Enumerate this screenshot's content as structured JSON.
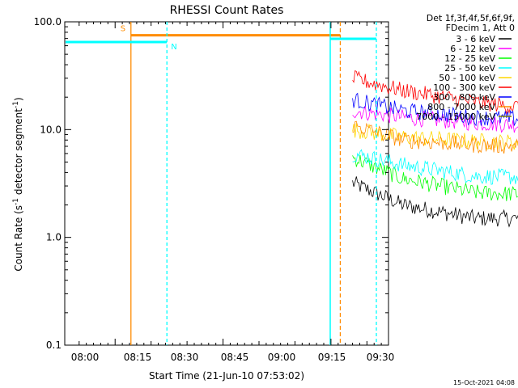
{
  "chart_data": {
    "type": "line",
    "title": "RHESSI Count Rates",
    "xlabel": "Start Time (21-Jun-10 07:53:02)",
    "ylabel": "Count Rate (s^-1 detector segment^-1)",
    "ylabel_main": "Count Rate (s",
    "ylabel_sup1": "-1",
    "ylabel_mid": " detector segment",
    "ylabel_sup2": "-1",
    "ylabel_end": ")",
    "y_scale": "log",
    "ylim": [
      0.1,
      100
    ],
    "y_ticks": [
      {
        "value": 0.1,
        "label": "0.1"
      },
      {
        "value": 1,
        "label": "1.0"
      },
      {
        "value": 10,
        "label": "10.0"
      },
      {
        "value": 100,
        "label": "100.0"
      }
    ],
    "xlim_minutes": [
      -7,
      38
    ],
    "x_ticks": [
      {
        "minute": 0,
        "label": "08:00"
      },
      {
        "minute": 15,
        "label": "08:15"
      },
      {
        "minute": 30,
        "label": "08:30"
      },
      {
        "minute": 45,
        "label": "08:45"
      },
      {
        "minute": 60,
        "label": "09:00"
      },
      {
        "minute": 75,
        "label": "09:15"
      },
      {
        "minute": 90,
        "label": "09:30"
      }
    ],
    "legend_header": [
      "Det 1f,3f,4f,5f,6f,9f,",
      "FDecim 1, Att 0"
    ],
    "legend_position": "right",
    "series": [
      {
        "name": "3 - 6 keV",
        "color": "#000000",
        "points": [
          [
            33,
            3.2
          ],
          [
            40,
            2.0
          ],
          [
            50,
            1.5
          ],
          [
            57,
            1.5
          ],
          [
            62,
            2.1
          ],
          [
            75,
            2.7
          ],
          [
            79,
            3.0
          ]
        ]
      },
      {
        "name": "6 - 12 keV",
        "color": "#ff00ff",
        "points": [
          [
            33,
            15
          ],
          [
            40,
            13
          ],
          [
            50,
            11.5
          ],
          [
            57,
            11
          ],
          [
            62,
            12
          ],
          [
            75,
            13
          ],
          [
            79,
            13.5
          ]
        ]
      },
      {
        "name": "12 - 25 keV",
        "color": "#00ff00",
        "points": [
          [
            33,
            5.5
          ],
          [
            40,
            3.5
          ],
          [
            50,
            2.6
          ],
          [
            57,
            2.5
          ],
          [
            62,
            2.8
          ],
          [
            75,
            3.5
          ],
          [
            79,
            3.7
          ]
        ]
      },
      {
        "name": "25 - 50 keV",
        "color": "#00ffff",
        "points": [
          [
            33,
            6.0
          ],
          [
            40,
            4.7
          ],
          [
            50,
            3.7
          ],
          [
            57,
            3.6
          ],
          [
            62,
            4.0
          ],
          [
            75,
            4.6
          ],
          [
            79,
            4.8
          ]
        ]
      },
      {
        "name": "50 - 100 keV",
        "color": "#ffd700",
        "points": [
          [
            33,
            10
          ],
          [
            40,
            8.5
          ],
          [
            50,
            7.8
          ],
          [
            57,
            7.6
          ],
          [
            62,
            8.0
          ],
          [
            75,
            9.0
          ],
          [
            79,
            9.5
          ]
        ]
      },
      {
        "name": "100 - 300 keV",
        "color": "#ff0000",
        "points": [
          [
            33,
            30
          ],
          [
            40,
            23
          ],
          [
            50,
            18
          ],
          [
            57,
            16
          ],
          [
            62,
            17
          ],
          [
            75,
            19.5
          ],
          [
            79,
            20
          ]
        ]
      },
      {
        "name": "300 - 800 keV",
        "color": "#0000ff",
        "points": [
          [
            33,
            19
          ],
          [
            40,
            15
          ],
          [
            50,
            13
          ],
          [
            57,
            12.5
          ],
          [
            62,
            13
          ],
          [
            75,
            14
          ],
          [
            79,
            13.5
          ]
        ]
      },
      {
        "name": "800 - 7000 keV",
        "color": "#ff8c00",
        "points": [
          [
            33,
            11
          ],
          [
            40,
            8.0
          ],
          [
            50,
            7.2
          ],
          [
            57,
            7.0
          ],
          [
            62,
            7.3
          ],
          [
            75,
            8.0
          ],
          [
            79,
            8.0
          ]
        ]
      },
      {
        "name": "7000 - 15000 keV",
        "color": "#808000",
        "points": []
      }
    ],
    "markers": [
      {
        "label": "S",
        "color": "#ff8c00",
        "x_minute": 2.2,
        "x_end_minute": 31.3,
        "bar_value": 75,
        "style": "solid"
      },
      {
        "label": "N",
        "color": "#00ffff",
        "x_minute": 7.2,
        "bar_from_minute": -7,
        "bar_value": 65,
        "style": "dashed"
      }
    ],
    "date_stamp": "15-Oct-2021 04:08"
  }
}
